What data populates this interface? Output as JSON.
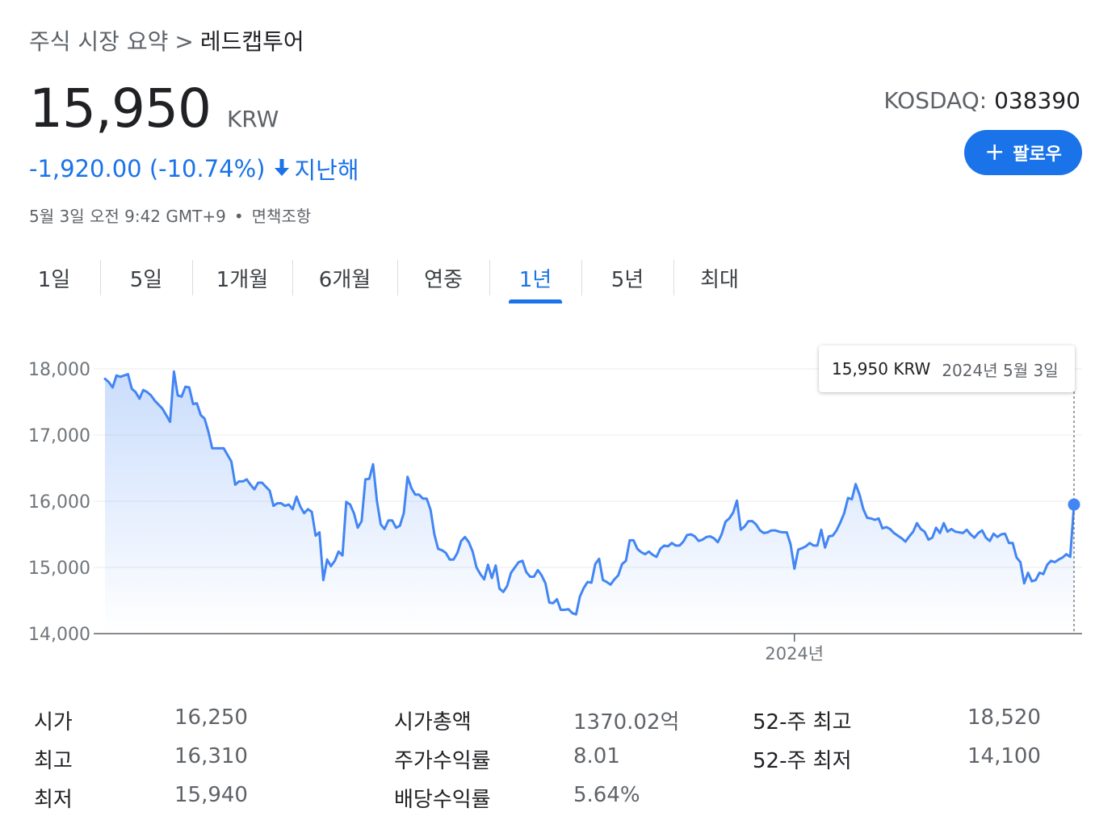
{
  "breadcrumb": {
    "parent": "주식 시장 요약",
    "separator": ">",
    "current": "레드캡투어"
  },
  "quote": {
    "price": "15,950",
    "currency": "KRW",
    "change": "-1,920.00 (-10.74%)",
    "change_period": "지난해",
    "timestamp": "5월 3일 오전 9:42 GMT+9",
    "disclaimer": "면책조항",
    "exchange": "KOSDAQ:",
    "ticker": "038390"
  },
  "follow_button": {
    "label": "팔로우"
  },
  "tabs": [
    {
      "label": "1일",
      "active": false
    },
    {
      "label": "5일",
      "active": false
    },
    {
      "label": "1개월",
      "active": false
    },
    {
      "label": "6개월",
      "active": false
    },
    {
      "label": "연중",
      "active": false
    },
    {
      "label": "1년",
      "active": true
    },
    {
      "label": "5년",
      "active": false
    },
    {
      "label": "최대",
      "active": false
    }
  ],
  "tooltip": {
    "price": "15,950 KRW",
    "date": "2024년 5월 3일"
  },
  "chart_data": {
    "type": "area",
    "y_ticks": [
      "18,000",
      "17,000",
      "16,000",
      "15,000",
      "14,000"
    ],
    "ylim": [
      14000,
      18000
    ],
    "x_ticks": [
      "2024년"
    ],
    "x_tick_index": 180,
    "grid": true,
    "line_color": "#4285f4",
    "values": [
      17850,
      17800,
      17720,
      17900,
      17880,
      17900,
      17920,
      17700,
      17650,
      17550,
      17680,
      17650,
      17600,
      17520,
      17460,
      17400,
      17300,
      17200,
      17960,
      17600,
      17580,
      17730,
      17720,
      17470,
      17480,
      17300,
      17250,
      17050,
      16800,
      16800,
      16800,
      16800,
      16700,
      16600,
      16250,
      16300,
      16300,
      16330,
      16250,
      16180,
      16280,
      16280,
      16220,
      16160,
      15930,
      15970,
      15970,
      15930,
      15950,
      15880,
      16070,
      15920,
      15820,
      15880,
      15840,
      15480,
      15530,
      14810,
      15120,
      15020,
      15100,
      15240,
      15180,
      15990,
      15950,
      15820,
      15600,
      15700,
      16330,
      16340,
      16560,
      16000,
      15650,
      15580,
      15710,
      15710,
      15600,
      15630,
      15820,
      16370,
      16200,
      16100,
      16100,
      16040,
      16040,
      15870,
      15500,
      15280,
      15260,
      15220,
      15120,
      15120,
      15220,
      15400,
      15460,
      15380,
      15240,
      15000,
      14900,
      14820,
      15040,
      14840,
      15030,
      14680,
      14630,
      14720,
      14920,
      15000,
      15080,
      15100,
      14930,
      14860,
      14860,
      14960,
      14880,
      14760,
      14470,
      14460,
      14520,
      14360,
      14360,
      14370,
      14310,
      14290,
      14560,
      14690,
      14780,
      14770,
      15050,
      15130,
      14810,
      14780,
      14740,
      14820,
      14880,
      15050,
      15100,
      15410,
      15410,
      15280,
      15230,
      15200,
      15240,
      15190,
      15160,
      15280,
      15330,
      15320,
      15370,
      15330,
      15330,
      15390,
      15490,
      15500,
      15470,
      15400,
      15420,
      15460,
      15470,
      15440,
      15380,
      15500,
      15690,
      15740,
      15830,
      16010,
      15570,
      15620,
      15700,
      15700,
      15650,
      15560,
      15520,
      15530,
      15560,
      15560,
      15540,
      15530,
      15530,
      15350,
      14980,
      15270,
      15290,
      15320,
      15370,
      15330,
      15330,
      15570,
      15300,
      15470,
      15480,
      15560,
      15680,
      15820,
      16050,
      16030,
      16260,
      16100,
      15880,
      15750,
      15740,
      15720,
      15740,
      15590,
      15610,
      15580,
      15520,
      15480,
      15440,
      15390,
      15470,
      15540,
      15670,
      15580,
      15540,
      15420,
      15450,
      15600,
      15520,
      15670,
      15540,
      15580,
      15540,
      15530,
      15520,
      15570,
      15500,
      15450,
      15520,
      15560,
      15450,
      15400,
      15510,
      15460,
      15500,
      15510,
      15370,
      15370,
      15150,
      15080,
      14760,
      14920,
      14790,
      14810,
      14920,
      14900,
      15040,
      15100,
      15080,
      15120,
      15150,
      15200,
      15160,
      15950
    ]
  },
  "stats": {
    "col1": [
      {
        "label": "시가",
        "value": "16,250"
      },
      {
        "label": "최고",
        "value": "16,310"
      },
      {
        "label": "최저",
        "value": "15,940"
      }
    ],
    "col2": [
      {
        "label": "시가총액",
        "value": "1370.02억"
      },
      {
        "label": "주가수익률",
        "value": "8.01"
      },
      {
        "label": "배당수익률",
        "value": "5.64%"
      }
    ],
    "col3": [
      {
        "label": "52-주 최고",
        "value": "18,520"
      },
      {
        "label": "52-주 최저",
        "value": "14,100"
      }
    ]
  }
}
